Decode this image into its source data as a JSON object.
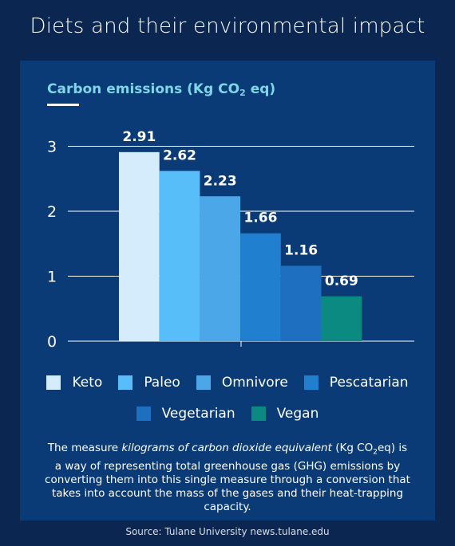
{
  "page": {
    "title": "Diets and their environmental impact"
  },
  "chart_title": {
    "main": "Carbon emissions (Kg CO",
    "sub": "2",
    "end": " eq)"
  },
  "chart_data": {
    "type": "bar",
    "categories": [
      "Keto",
      "Paleo",
      "Omnivore",
      "Pescatarian",
      "Vegetarian",
      "Vegan"
    ],
    "values": [
      2.91,
      2.62,
      2.23,
      1.66,
      1.16,
      0.69
    ],
    "value_labels": [
      "2.91",
      "2.62",
      "2.23",
      "1.66",
      "1.16",
      "0.69"
    ],
    "colors": [
      "#d4ecfb",
      "#58befa",
      "#4ca7e8",
      "#2080cf",
      "#1e6fbf",
      "#0a8a80"
    ],
    "ylim": [
      0,
      3
    ],
    "yticks": [
      "0",
      "1",
      "2",
      "3"
    ],
    "grid": true,
    "legend_position": "bottom"
  },
  "note": {
    "part1": "The measure ",
    "italic": "kilograms of carbon dioxide equivalent",
    "part2": " (Kg CO",
    "sub": "2",
    "part3": "eq) is a way of representing total greenhouse gas (GHG) emissions by converting them into this single measure through a conversion that takes into account the mass of the gases and their heat-trapping capacity."
  },
  "source": "Source: Tulane University news.tulane.edu"
}
